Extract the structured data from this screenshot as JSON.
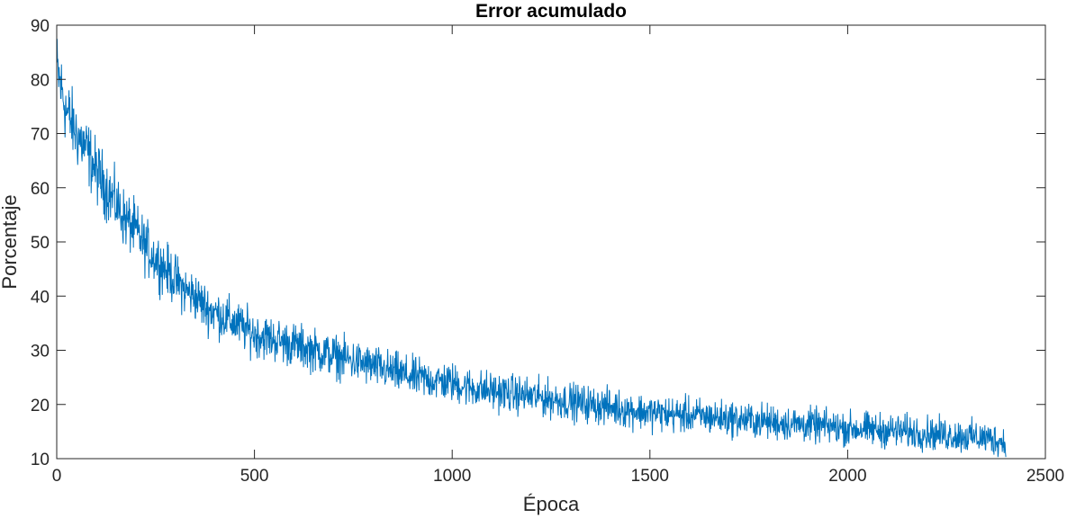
{
  "chart_data": {
    "type": "line",
    "title": "Error acumulado",
    "xlabel": "Época",
    "ylabel": "Porcentaje",
    "xlim": [
      0,
      2500
    ],
    "ylim": [
      10,
      90
    ],
    "xticks": [
      0,
      500,
      1000,
      1500,
      2000,
      2500
    ],
    "yticks": [
      10,
      20,
      30,
      40,
      50,
      60,
      70,
      80,
      90
    ],
    "grid": false,
    "line_color": "#0072BD",
    "series": [
      {
        "x": [
          0,
          25,
          50,
          75,
          100,
          125,
          150,
          175,
          200,
          225,
          250,
          275,
          300,
          325,
          350,
          375,
          400,
          425,
          450,
          475,
          500,
          550,
          600,
          650,
          700,
          750,
          800,
          850,
          900,
          950,
          1000,
          1050,
          1100,
          1150,
          1200,
          1250,
          1300,
          1350,
          1400,
          1450,
          1500,
          1550,
          1600,
          1650,
          1700,
          1750,
          1800,
          1850,
          1900,
          1950,
          2000,
          2050,
          2100,
          2150,
          2200,
          2250,
          2300,
          2350,
          2400
        ],
        "values": [
          82,
          74,
          70,
          67,
          63,
          60,
          57,
          54,
          52,
          49,
          47,
          45,
          43,
          41,
          40,
          38,
          37,
          36,
          35,
          34,
          33,
          32,
          31,
          30,
          29,
          28,
          27,
          26,
          25,
          24.5,
          24,
          23,
          22.5,
          22,
          21.5,
          21,
          20.5,
          20,
          19.5,
          19,
          18.5,
          18.2,
          18,
          17.7,
          17.4,
          17.1,
          16.8,
          16.5,
          16.2,
          15.9,
          15.6,
          15.4,
          15.2,
          15,
          14.7,
          14.4,
          14.1,
          13.8,
          13
        ]
      }
    ]
  }
}
